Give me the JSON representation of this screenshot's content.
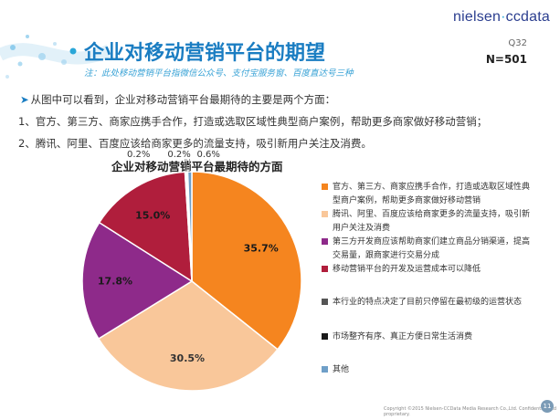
{
  "header": {
    "logo_main": "nielsen",
    "logo_sep": "·",
    "logo_sub": "ccdata",
    "title": "企业对移动营销平台的期望",
    "note": "注：此处移动营销平台指微信公众号、支付宝服务窗、百度直达号三种",
    "question": "Q32",
    "sample": "N=501"
  },
  "body": {
    "arrow": "➤",
    "line1": "从图中可以看到，企业对移动营销平台最期待的主要是两个方面：",
    "line2": "1、官方、第三方、商家应携手合作，打造或选取区域性典型商户案例，帮助更多商家做好移动营销；",
    "line3": "2、腾讯、阿里、百度应该给商家更多的流量支持，吸引新用户关注及消费。"
  },
  "chart_data": {
    "type": "pie",
    "title": "企业对移动营销平台最期待的方面",
    "legend_position": "right",
    "slices": [
      {
        "label": "官方、第三方、商家应携手合作，打造或选取区域性典型商户案例，帮助更多商家做好移动营销",
        "value": 35.7,
        "display": "35.7%",
        "color": "#f5851f"
      },
      {
        "label": "腾讯、阿里、百度应该给商家更多的流量支持，吸引新用户关注及消费",
        "value": 30.5,
        "display": "30.5%",
        "color": "#f9c79a"
      },
      {
        "label": "第三方开发商应该帮助商家们建立商品分销渠道，提高交易量，跟商家进行交易分成",
        "value": 17.8,
        "display": "17.8%",
        "color": "#8e2a8a"
      },
      {
        "label": "移动营销平台的开发及运营成本可以降低",
        "value": 15.0,
        "display": "15.0%",
        "color": "#b01e3c"
      },
      {
        "label": "本行业的特点决定了目前只停留在最初级的运营状态",
        "value": 0.2,
        "display": "0.2%",
        "color": "#555555"
      },
      {
        "label": "市场整齐有序、真正方便日常生活消费",
        "value": 0.2,
        "display": "0.2%",
        "color": "#1a1a1a"
      },
      {
        "label": "其他",
        "value": 0.6,
        "display": "0.6%",
        "color": "#6f9fc8"
      }
    ]
  },
  "footer": {
    "copyright": "Copyright ©2015 Nielsen-CCData Media Research Co.,Ltd. Confidential and proprietary.",
    "page": "11"
  }
}
